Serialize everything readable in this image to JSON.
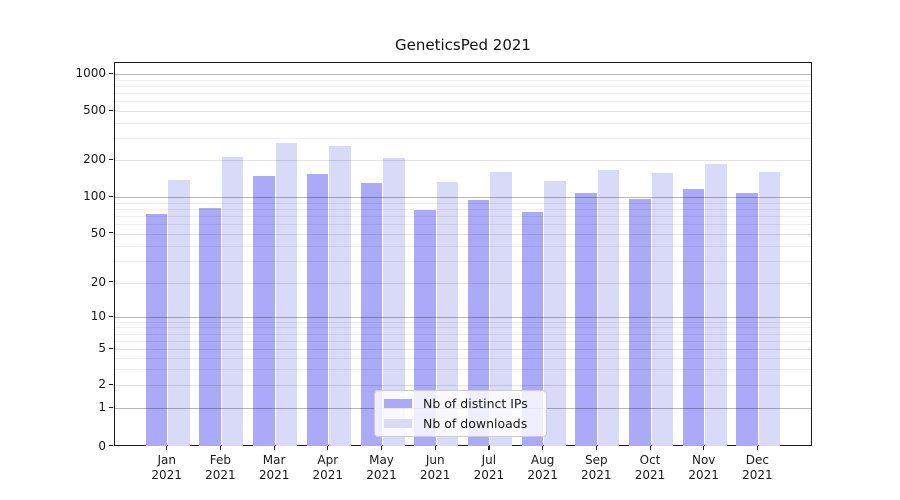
{
  "title": "GeneticsPed 2021",
  "colors": {
    "distinct_ips_bar": "#aaaaf8",
    "downloads_bar": "#d9d9f8",
    "grid_power10": "#b8b8b8",
    "grid_labeled": "#e0e0e0",
    "grid_minor": "#efefef",
    "axis": "#1a1a1a"
  },
  "legend": {
    "entries": [
      {
        "label": "Nb of distinct IPs",
        "color": "#aaaaf8"
      },
      {
        "label": "Nb of downloads",
        "color": "#d9d9f8"
      }
    ]
  },
  "y_axis": {
    "tick_labels": [
      "0",
      "1",
      "2",
      "5",
      "10",
      "20",
      "50",
      "100",
      "200",
      "500",
      "1000"
    ]
  },
  "x_axis": {
    "tick_labels": [
      "Jan 2021",
      "Feb 2021",
      "Mar 2021",
      "Apr 2021",
      "May 2021",
      "Jun 2021",
      "Jul 2021",
      "Aug 2021",
      "Sep 2021",
      "Oct 2021",
      "Nov 2021",
      "Dec 2021"
    ]
  },
  "chart_data": {
    "type": "bar",
    "title": "GeneticsPed 2021",
    "categories": [
      "Jan 2021",
      "Feb 2021",
      "Mar 2021",
      "Apr 2021",
      "May 2021",
      "Jun 2021",
      "Jul 2021",
      "Aug 2021",
      "Sep 2021",
      "Oct 2021",
      "Nov 2021",
      "Dec 2021"
    ],
    "series": [
      {
        "name": "Nb of distinct IPs",
        "color": "#aaaaf8",
        "values": [
          73,
          81,
          148,
          154,
          131,
          78,
          94,
          75,
          107,
          97,
          117,
          107
        ]
      },
      {
        "name": "Nb of downloads",
        "color": "#d9d9f8",
        "values": [
          137,
          212,
          277,
          261,
          208,
          133,
          161,
          136,
          166,
          156,
          187,
          161
        ]
      }
    ],
    "xlabel": "",
    "ylabel": "",
    "yscale": "symlog",
    "yticks": [
      0,
      1,
      2,
      5,
      10,
      20,
      50,
      100,
      200,
      500,
      1000
    ],
    "ylim": [
      0,
      1200
    ],
    "grid": true,
    "legend_position": "lower center"
  }
}
